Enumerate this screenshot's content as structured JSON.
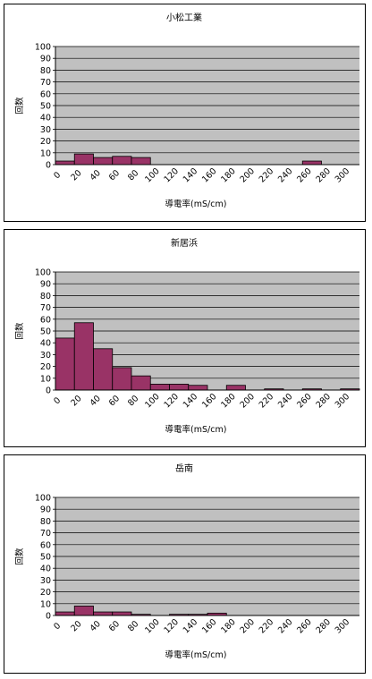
{
  "colors": {
    "plot_bg": "#c0c0c0",
    "bar_fill": "#993366",
    "grid": "#000000",
    "frame": "#000000"
  },
  "chart_data": [
    {
      "type": "bar",
      "title": "小松工業",
      "xlabel": "導電率(mS/cm)",
      "ylabel": "回数",
      "ylim": [
        0,
        100
      ],
      "yticks": [
        0,
        10,
        20,
        30,
        40,
        50,
        60,
        70,
        80,
        90,
        100
      ],
      "xticks": [
        "0",
        "20",
        "40",
        "60",
        "80",
        "100",
        "120",
        "140",
        "160",
        "180",
        "200",
        "220",
        "240",
        "260",
        "280",
        "300"
      ],
      "values": [
        3,
        9,
        6,
        7,
        6,
        0,
        0,
        0,
        0,
        0,
        0,
        0,
        0,
        3,
        0,
        0
      ],
      "grid": true,
      "legend": "none"
    },
    {
      "type": "bar",
      "title": "新居浜",
      "xlabel": "導電率(mS/cm)",
      "ylabel": "回数",
      "ylim": [
        0,
        100
      ],
      "yticks": [
        0,
        10,
        20,
        30,
        40,
        50,
        60,
        70,
        80,
        90,
        100
      ],
      "xticks": [
        "0",
        "20",
        "40",
        "60",
        "80",
        "100",
        "120",
        "140",
        "160",
        "180",
        "200",
        "220",
        "240",
        "260",
        "280",
        "300"
      ],
      "values": [
        44,
        57,
        35,
        19,
        12,
        5,
        5,
        4,
        0,
        4,
        0,
        1,
        0,
        1,
        0,
        1
      ],
      "grid": true,
      "legend": "none"
    },
    {
      "type": "bar",
      "title": "岳南",
      "xlabel": "導電率(mS/cm)",
      "ylabel": "回数",
      "ylim": [
        0,
        100
      ],
      "yticks": [
        0,
        10,
        20,
        30,
        40,
        50,
        60,
        70,
        80,
        90,
        100
      ],
      "xticks": [
        "0",
        "20",
        "40",
        "60",
        "80",
        "100",
        "120",
        "140",
        "160",
        "180",
        "200",
        "220",
        "240",
        "260",
        "280",
        "300"
      ],
      "values": [
        3,
        8,
        3,
        3,
        1,
        0,
        1,
        1,
        2,
        0,
        0,
        0,
        0,
        0,
        0,
        0
      ],
      "grid": true,
      "legend": "none"
    }
  ]
}
